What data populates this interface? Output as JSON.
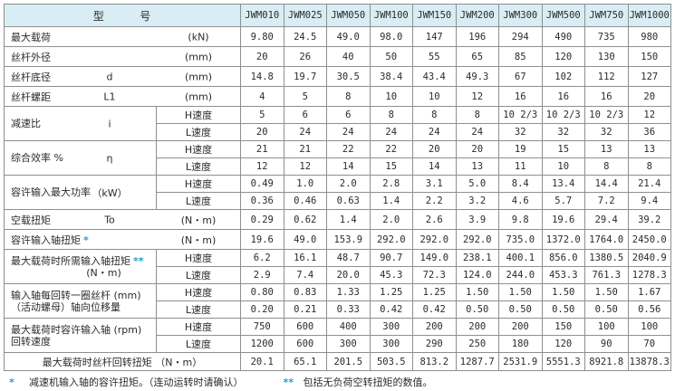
{
  "colors": {
    "header_bg": "#d9edf4",
    "border": "#8f8f8f",
    "mark_blue": "#1aa3cf",
    "text": "#2b2b2b"
  },
  "table": {
    "model_header": "型        号",
    "models": [
      "JWM010",
      "JWM025",
      "JWM050",
      "JWM100",
      "JWM150",
      "JWM200",
      "JWM300",
      "JWM500",
      "JWM750",
      "JWM1000"
    ],
    "speed_labels": {
      "h": "H速度",
      "l": "L速度"
    },
    "rows": [
      {
        "type": "simple",
        "label": "最大载荷",
        "symbol": "",
        "unit": "(kN)",
        "values": [
          "9.80",
          "24.5",
          "49.0",
          "98.0",
          "147",
          "196",
          "294",
          "490",
          "735",
          "980"
        ]
      },
      {
        "type": "simple",
        "label": "丝杆外径",
        "symbol": "",
        "unit": "(mm)",
        "values": [
          "20",
          "26",
          "40",
          "50",
          "55",
          "65",
          "85",
          "120",
          "130",
          "150"
        ]
      },
      {
        "type": "simple",
        "label": "丝杆底径",
        "symbol": "d",
        "unit": "(mm)",
        "values": [
          "14.8",
          "19.7",
          "30.5",
          "38.4",
          "43.4",
          "49.3",
          "67",
          "102",
          "112",
          "127"
        ]
      },
      {
        "type": "simple",
        "label": "丝杆螺距",
        "symbol": "L1",
        "unit": "(mm)",
        "values": [
          "4",
          "5",
          "8",
          "10",
          "10",
          "12",
          "16",
          "16",
          "16",
          "20"
        ]
      },
      {
        "type": "dual",
        "label": "减速比",
        "symbol": "i",
        "h": [
          "5",
          "6",
          "6",
          "8",
          "8",
          "8",
          "10 2/3",
          "10 2/3",
          "10 2/3",
          "12"
        ],
        "l": [
          "20",
          "24",
          "24",
          "24",
          "24",
          "24",
          "32",
          "32",
          "32",
          "36"
        ]
      },
      {
        "type": "dual",
        "label": "综合效率 %",
        "symbol": "η",
        "h": [
          "21",
          "21",
          "22",
          "22",
          "20",
          "20",
          "19",
          "15",
          "13",
          "13"
        ],
        "l": [
          "12",
          "12",
          "14",
          "15",
          "14",
          "13",
          "11",
          "10",
          "8",
          "8"
        ]
      },
      {
        "type": "dual",
        "label": "容许输入最大功率",
        "symbol": "（kW）",
        "h": [
          "0.49",
          "1.0",
          "2.0",
          "2.8",
          "3.1",
          "5.0",
          "8.4",
          "13.4",
          "14.4",
          "21.4"
        ],
        "l": [
          "0.36",
          "0.46",
          "0.63",
          "1.4",
          "2.2",
          "3.2",
          "4.6",
          "5.7",
          "7.2",
          "9.4"
        ]
      },
      {
        "type": "simple",
        "label": "空载扭矩",
        "symbol": "To",
        "unit": "(N・m)",
        "values": [
          "0.29",
          "0.62",
          "1.4",
          "2.0",
          "2.6",
          "3.9",
          "9.8",
          "19.6",
          "29.4",
          "39.2"
        ]
      },
      {
        "type": "simple",
        "label": "容许输入轴扭矩",
        "mark": "*",
        "symbol": "",
        "unit": "(N・m)",
        "values": [
          "19.6",
          "49.0",
          "153.9",
          "292.0",
          "292.0",
          "292.0",
          "735.0",
          "1372.0",
          "1764.0",
          "2450.0"
        ]
      },
      {
        "type": "dual",
        "label": "最大载荷时所需输入轴扭矩",
        "mark": "**",
        "label2": "(N・m)",
        "label2_center": true,
        "h": [
          "6.2",
          "16.1",
          "48.7",
          "90.7",
          "149.0",
          "238.1",
          "400.1",
          "856.0",
          "1380.5",
          "2040.9"
        ],
        "l": [
          "2.9",
          "7.4",
          "20.0",
          "45.3",
          "72.3",
          "124.0",
          "244.0",
          "453.3",
          "761.3",
          "1278.3"
        ]
      },
      {
        "type": "dual",
        "label": "输入轴每回转一圈丝杆  (mm)",
        "label2": "（活动螺母）轴向位移量",
        "h": [
          "0.80",
          "0.83",
          "1.33",
          "1.25",
          "1.25",
          "1.50",
          "1.50",
          "1.50",
          "1.50",
          "1.67"
        ],
        "l": [
          "0.20",
          "0.21",
          "0.33",
          "0.42",
          "0.42",
          "0.50",
          "0.50",
          "0.50",
          "0.50",
          "0.56"
        ]
      },
      {
        "type": "dual",
        "label": "最大载荷时容许输入轴 (rpm)",
        "label2": "回转速度",
        "h": [
          "750",
          "600",
          "400",
          "300",
          "200",
          "200",
          "200",
          "150",
          "100",
          "100"
        ],
        "l": [
          "1200",
          "600",
          "300",
          "300",
          "290",
          "250",
          "180",
          "120",
          "90",
          "70"
        ]
      },
      {
        "type": "full",
        "label": "最大载荷时丝杆回转扭矩 （N・m）",
        "values": [
          "20.1",
          "65.1",
          "201.5",
          "503.5",
          "813.2",
          "1287.7",
          "2531.9",
          "5551.3",
          "8921.8",
          "13878.3"
        ]
      }
    ]
  },
  "footnotes": [
    {
      "mark": "*",
      "text": "减速机输入轴的容许扭矩。（连动运转时请确认）"
    },
    {
      "mark": "**",
      "text": "包括无负荷空转扭矩的数值。"
    }
  ]
}
